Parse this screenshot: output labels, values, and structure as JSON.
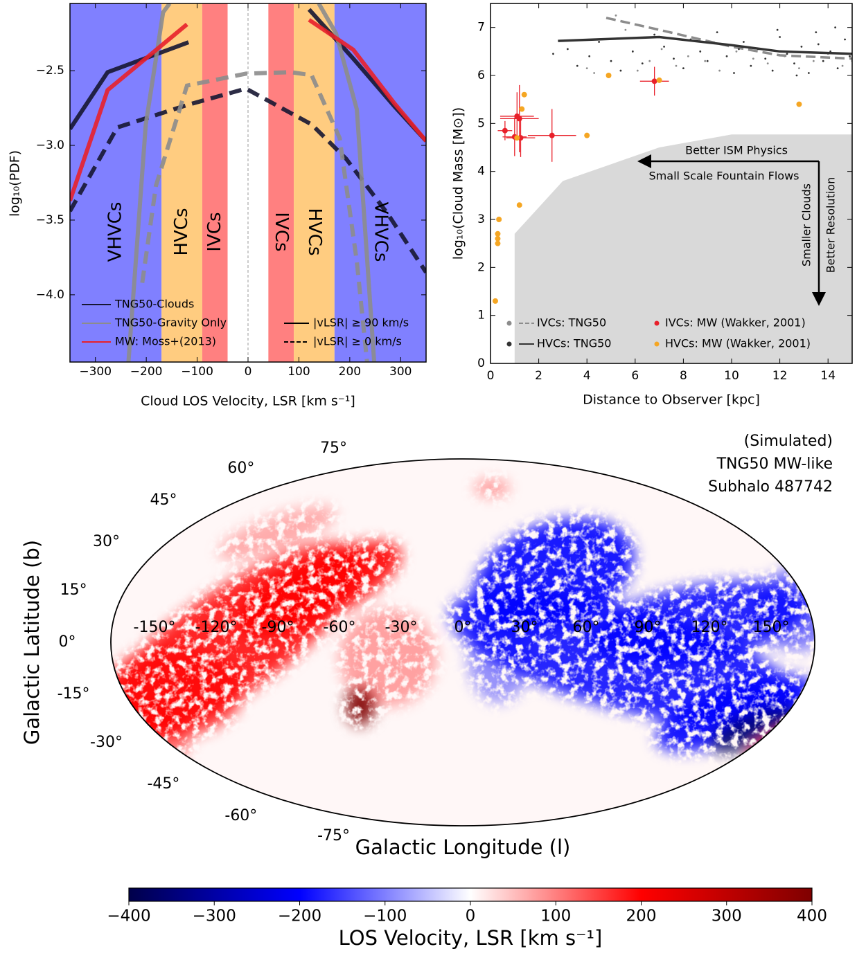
{
  "chart_data": [
    {
      "type": "line",
      "xlabel": "Cloud LOS Velocity, LSR [km s⁻¹]",
      "ylabel": "log₁₀(PDF)",
      "xlim": [
        -350,
        350
      ],
      "ylim": [
        -4.45,
        -2.05
      ],
      "xticks": [
        {
          "value": -300,
          "label": "−300"
        },
        {
          "value": -200,
          "label": "−200"
        },
        {
          "value": -100,
          "label": "−100"
        },
        0,
        100,
        200,
        300
      ],
      "yticks": [
        {
          "value": -4.0,
          "label": "−4.0"
        },
        {
          "value": -3.5,
          "label": "−3.5"
        },
        {
          "value": -3.0,
          "label": "−3.0"
        },
        {
          "value": -2.5,
          "label": "−2.5"
        }
      ],
      "bands": [
        {
          "from": -350,
          "to": -170,
          "color": "#8080ff",
          "label": "VHVCs"
        },
        {
          "from": -170,
          "to": -90,
          "color": "#ffcc80",
          "label": "HVCs"
        },
        {
          "from": -90,
          "to": -40,
          "color": "#ff8080",
          "label": "IVCs"
        },
        {
          "from": -40,
          "to": 40,
          "color": "#ffffff"
        },
        {
          "from": 40,
          "to": 90,
          "color": "#ff8080",
          "label": "IVCs"
        },
        {
          "from": 90,
          "to": 170,
          "color": "#ffcc80",
          "label": "HVCs"
        },
        {
          "from": 170,
          "to": 350,
          "color": "#8080ff",
          "label": "VHVCs"
        }
      ],
      "zero_line": 0,
      "series": [
        {
          "name": "TNG50-Clouds",
          "color": "#161632",
          "lines": [
            {
              "style": "solid",
              "x": [
                -350,
                -276,
                -117,
                0,
                120,
                207,
                288,
                350
              ],
              "values": [
                -2.89,
                -2.51,
                -2.31,
                null,
                -2.09,
                -2.42,
                -2.74,
                -2.97
              ]
            },
            {
              "style": "dashed",
              "x": [
                -350,
                -257,
                -120,
                -4,
                125,
                193,
                275,
                350
              ],
              "values": [
                -3.44,
                -2.88,
                -2.73,
                -2.62,
                -2.86,
                -3.09,
                -3.46,
                -3.85
              ]
            }
          ]
        },
        {
          "name": "TNG50-Gravity Only",
          "color": "#8c8c8c",
          "lines": [
            {
              "style": "solid",
              "x": [
                -235,
                -201,
                -167,
                -154,
                0,
                139,
                173,
                214,
                248
              ],
              "values": [
                -4.45,
                -2.86,
                -2.11,
                -2.05,
                null,
                -2.05,
                -2.25,
                -2.76,
                -4.45
              ]
            },
            {
              "style": "dashed",
              "x": [
                -208,
                -181,
                -120,
                -4,
                84,
                125,
                180,
                214,
                234
              ],
              "values": [
                -3.92,
                -3.27,
                -2.6,
                -2.52,
                -2.51,
                -2.53,
                -2.95,
                -3.78,
                -4.45
              ]
            }
          ]
        },
        {
          "name": "MW: Moss+(2013)",
          "color": "#e8202a",
          "lines": [
            {
              "style": "solid",
              "x": [
                -350,
                -276,
                -120,
                0,
                120,
                207,
                288,
                350
              ],
              "values": [
                -3.37,
                -2.63,
                -2.19,
                null,
                -2.16,
                -2.36,
                -2.72,
                -2.97
              ]
            }
          ]
        }
      ],
      "line_styles": [
        {
          "style": "solid",
          "label": "|vLSR| ≥ 90 km/s"
        },
        {
          "style": "dashed",
          "label": "|vLSR| ≥ 0 km/s"
        }
      ]
    },
    {
      "type": "scatter",
      "xlabel": "Distance to Observer [kpc]",
      "ylabel": "log₁₀(Cloud Mass [M⊙])",
      "xlim": [
        0,
        15
      ],
      "ylim": [
        0,
        7.5
      ],
      "xticks": [
        0,
        2,
        4,
        6,
        8,
        10,
        12,
        14
      ],
      "yticks": [
        0,
        1,
        2,
        3,
        4,
        5,
        6,
        7
      ],
      "region": {
        "x": [
          1,
          1,
          3,
          7,
          10,
          15
        ],
        "values": [
          0,
          2.7,
          3.8,
          4.5,
          4.77,
          4.77
        ],
        "color": "#d9d9d9"
      },
      "annotations": [
        "Better ISM Physics",
        "Small Scale Fountain Flows",
        "Smaller Clouds",
        "Better Resolution"
      ],
      "series": [
        {
          "name": "IVCs: TNG50",
          "color": "#8c8c8c",
          "x": [
            4.0,
            4.3,
            5.2,
            5.6,
            6.1,
            6.6,
            7.1,
            7.7,
            8.2,
            8.9,
            9.5,
            10.2,
            10.9,
            11.5,
            12.2,
            12.8,
            13.4,
            14.0,
            14.6,
            15.0
          ],
          "values": [
            6.15,
            6.05,
            7.25,
            6.95,
            6.1,
            6.3,
            6.55,
            6.2,
            6.4,
            6.3,
            6.1,
            6.5,
            6.35,
            6.25,
            6.4,
            6.15,
            6.3,
            6.45,
            6.2,
            6.3
          ],
          "line": {
            "style": "dashed",
            "x": [
              4.8,
              7,
              10,
              12,
              15
            ],
            "values": [
              7.2,
              6.95,
              6.6,
              6.42,
              6.35
            ]
          }
        },
        {
          "name": "HVCs: TNG50",
          "color": "#333333",
          "x": [
            2.6,
            3.2,
            3.6,
            4.1,
            4.5,
            5.0,
            5.4,
            5.9,
            6.3,
            6.8,
            7.2,
            7.6,
            8.0,
            8.3,
            8.7,
            9.0,
            9.4,
            9.8,
            10.1,
            10.5,
            10.8,
            11.1,
            11.4,
            11.7,
            12.0,
            12.3,
            12.6,
            12.9,
            13.2,
            13.5,
            13.8,
            14.1,
            14.4,
            14.7,
            14.9,
            11.9,
            12.7,
            13.6,
            14.3,
            10.3
          ],
          "values": [
            6.45,
            6.55,
            6.2,
            6.4,
            6.7,
            6.3,
            6.1,
            6.5,
            6.25,
            6.85,
            6.6,
            6.35,
            6.15,
            6.75,
            6.5,
            6.3,
            6.9,
            6.4,
            6.05,
            6.7,
            6.2,
            6.55,
            6.35,
            6.1,
            6.8,
            6.45,
            6.25,
            6.6,
            6.05,
            6.9,
            6.3,
            6.5,
            6.15,
            6.75,
            6.4,
            6.95,
            6.0,
            6.65,
            7.0,
            6.55
          ],
          "line": {
            "style": "solid",
            "x": [
              2.8,
              7,
              10,
              12,
              15
            ],
            "values": [
              6.72,
              6.8,
              6.63,
              6.5,
              6.45
            ]
          }
        },
        {
          "name": "IVCs: MW (Wakker, 2001)",
          "color": "#e8202a",
          "x": [
            0.6,
            1.0,
            1.1,
            1.2,
            1.25,
            2.55,
            6.8
          ],
          "values": [
            4.85,
            4.72,
            5.15,
            5.1,
            4.7,
            4.75,
            5.88
          ],
          "xerr": [
            0.3,
            0.5,
            0.7,
            0.8,
            0.6,
            1.0,
            0.6
          ],
          "yerr": [
            0.2,
            0.4,
            0.5,
            0.7,
            0.4,
            0.55,
            0.3
          ]
        },
        {
          "name": "HVCs: MW (Wakker, 2001)",
          "color": "#f5a623",
          "x": [
            0.2,
            0.3,
            0.3,
            0.3,
            0.35,
            1.2,
            1.3,
            1.1,
            4.0,
            4.9,
            7.0,
            12.8,
            1.4
          ],
          "values": [
            1.3,
            2.5,
            2.6,
            2.7,
            3.0,
            3.3,
            5.3,
            4.7,
            4.75,
            6.0,
            5.9,
            5.4,
            5.6
          ]
        }
      ]
    },
    {
      "type": "map",
      "title_lines": [
        "(Simulated)",
        "TNG50 MW-like",
        "Subhalo 487742"
      ],
      "xlabel": "Galactic Longitude (l)",
      "ylabel": "Galactic Latitude (b)",
      "lon_ticks": [
        {
          "value": -150,
          "label": "-150°"
        },
        {
          "value": -120,
          "label": "-120°"
        },
        {
          "value": -90,
          "label": "-90°"
        },
        {
          "value": -60,
          "label": "-60°"
        },
        {
          "value": -30,
          "label": "-30°"
        },
        {
          "value": 0,
          "label": "0°"
        },
        {
          "value": 30,
          "label": "30°"
        },
        {
          "value": 60,
          "label": "60°"
        },
        {
          "value": 90,
          "label": "90°"
        },
        {
          "value": 120,
          "label": "120°"
        },
        {
          "value": 150,
          "label": "150°"
        }
      ],
      "lat_ticks": [
        {
          "value": 75,
          "label": "75°"
        },
        {
          "value": 60,
          "label": "60°"
        },
        {
          "value": 45,
          "label": "45°"
        },
        {
          "value": 30,
          "label": "30°"
        },
        {
          "value": 15,
          "label": "15°"
        },
        {
          "value": 0,
          "label": "0°"
        },
        {
          "value": -15,
          "label": "-15°"
        },
        {
          "value": -30,
          "label": "-30°"
        },
        {
          "value": -45,
          "label": "-45°"
        },
        {
          "value": -60,
          "label": "-60°"
        },
        {
          "value": -75,
          "label": "-75°"
        }
      ],
      "colormap": [
        "#00004a",
        "#0000ff",
        "#ffffff",
        "#ff0000",
        "#7f0000"
      ],
      "colorbar": {
        "label": "LOS Velocity, LSR [km s⁻¹]",
        "lim": [
          -400,
          400
        ],
        "ticks": [
          {
            "value": -400,
            "label": "−400"
          },
          {
            "value": -300,
            "label": "−300"
          },
          {
            "value": -200,
            "label": "−200"
          },
          {
            "value": -100,
            "label": "−100"
          },
          0,
          100,
          200,
          300,
          400
        ]
      }
    }
  ]
}
